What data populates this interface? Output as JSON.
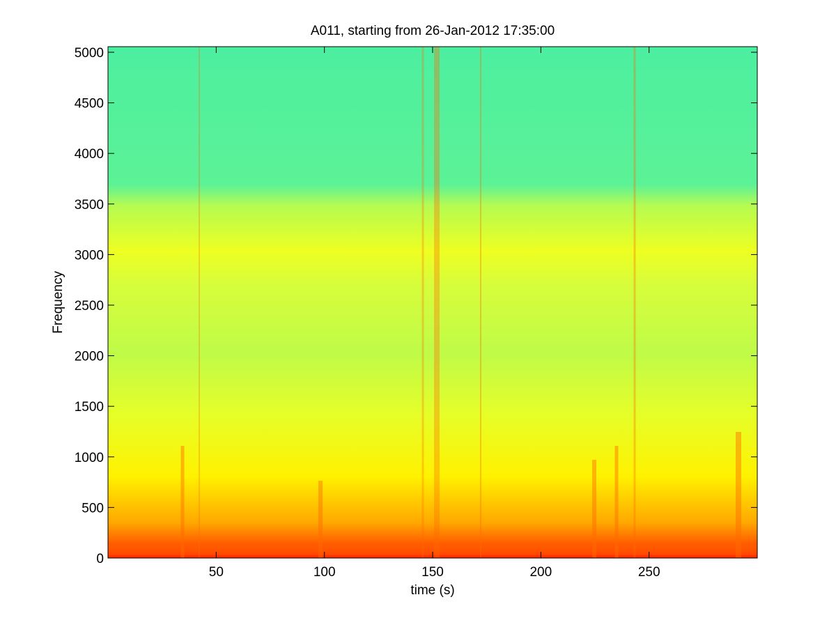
{
  "chart_data": {
    "type": "spectrogram",
    "title": "A011, starting from 26-Jan-2012 17:35:00",
    "x_label": "time (s)",
    "y_label": "Frequency",
    "xlim": [
      0,
      300
    ],
    "xticks": [
      50,
      100,
      150,
      200,
      250
    ],
    "ylim": [
      0,
      5055
    ],
    "yticks": [
      0,
      500,
      1000,
      1500,
      2000,
      2500,
      3000,
      3500,
      4000,
      4500,
      5000
    ],
    "grid": false
  }
}
